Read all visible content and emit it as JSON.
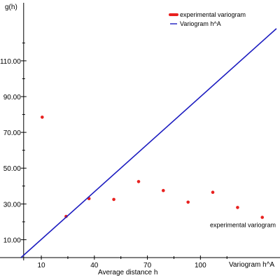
{
  "chart_data": {
    "type": "scatter",
    "title": "",
    "xlabel": "Average distance h",
    "xlabel_right": "Variogram h^A",
    "ylabel": "g(h)",
    "xlim": [
      -1.5,
      145
    ],
    "ylim": [
      0,
      144
    ],
    "x_ticks": [
      10,
      40,
      70,
      100
    ],
    "y_ticks": [
      10,
      30,
      50,
      70,
      90,
      110
    ],
    "y_tick_labels": [
      "10.00",
      "30.00",
      "50.00",
      "70.00",
      "90.00",
      "110.00"
    ],
    "grid": false,
    "legend_position": "top-right",
    "series": [
      {
        "name": "experimental variogram",
        "kind": "scatter",
        "color": "#e8211f",
        "points": [
          [
            10.5,
            78.5
          ],
          [
            24,
            23
          ],
          [
            37,
            33
          ],
          [
            51,
            32.5
          ],
          [
            65,
            42.5
          ],
          [
            79,
            37.5
          ],
          [
            93,
            31
          ],
          [
            107,
            36.5
          ],
          [
            121,
            28
          ],
          [
            135,
            22.5
          ]
        ]
      },
      {
        "name": "Variogram h^A",
        "kind": "line",
        "color": "#1c1cc0",
        "points": [
          [
            -1.5,
            0
          ],
          [
            143,
            128
          ]
        ]
      }
    ],
    "annotations": [
      {
        "text": "experimental variogram",
        "x": 124,
        "y": 17
      }
    ]
  }
}
